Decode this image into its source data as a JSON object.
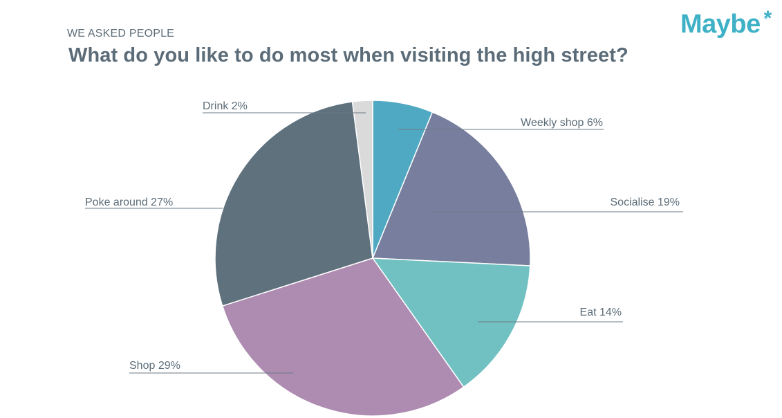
{
  "header": {
    "eyebrow": "WE ASKED PEOPLE",
    "title": "What do you like to do most when visiting the high street?"
  },
  "logo": {
    "text": "Maybe",
    "mark": "*",
    "registered": "®"
  },
  "chart_data": {
    "type": "pie",
    "title": "What do you like to do most when visiting the high street?",
    "start": "12 o'clock",
    "direction": "clockwise",
    "legend": "none",
    "slices": [
      {
        "label": "Weekly shop 6%",
        "value": 6,
        "color": "#50a9c3"
      },
      {
        "label": "Socialise 19%",
        "value": 19,
        "color": "#787f9e"
      },
      {
        "label": "Eat 14%",
        "value": 14,
        "color": "#72c1c2"
      },
      {
        "label": "Shop 29%",
        "value": 29,
        "color": "#ae8bb1"
      },
      {
        "label": "Poke around 27%",
        "value": 27,
        "color": "#5e717d"
      },
      {
        "label": "Drink 2%",
        "value": 2,
        "color": "#dadada"
      }
    ]
  }
}
